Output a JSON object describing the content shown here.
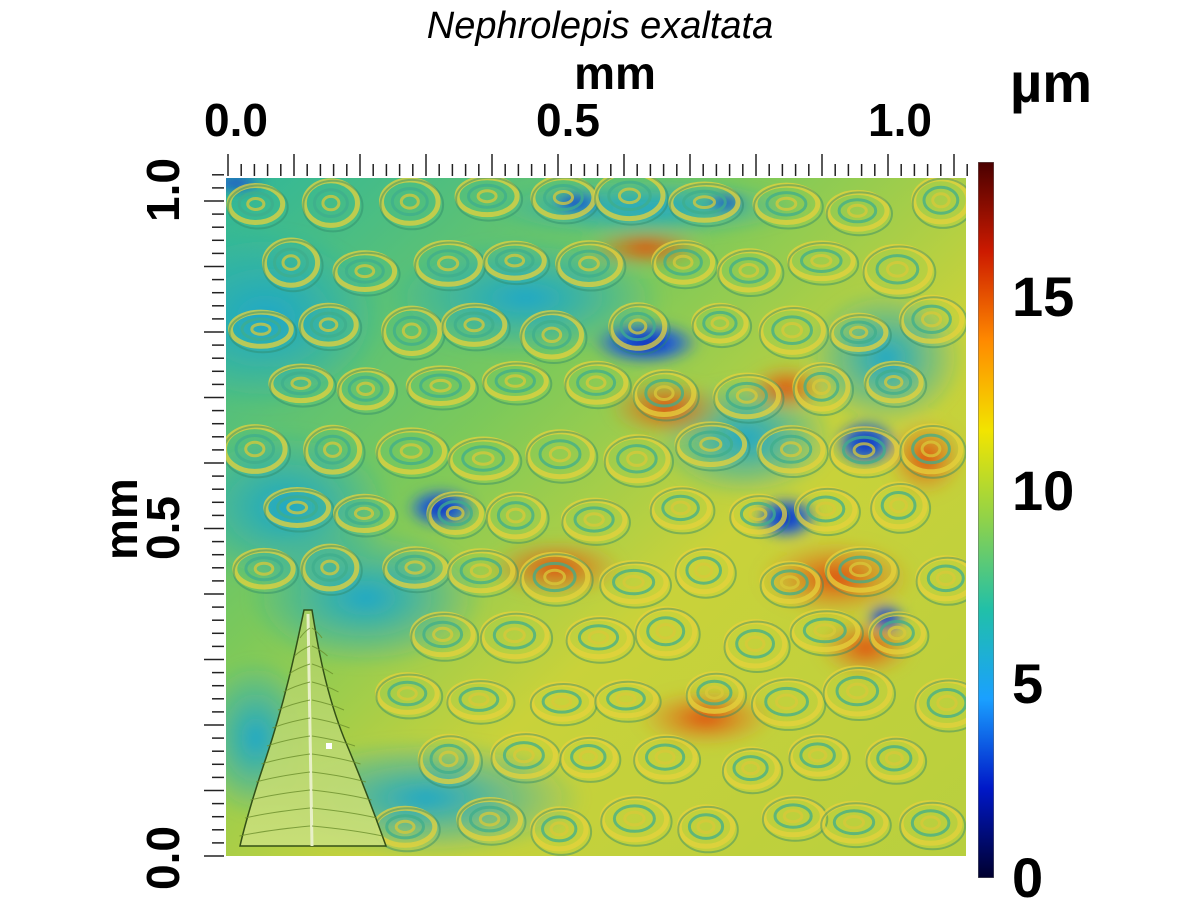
{
  "figure": {
    "title": "Nephrolepis exaltata",
    "x_axis": {
      "unit": "mm",
      "ticks": [
        "0.0",
        "0.5",
        "1.0"
      ]
    },
    "y_axis": {
      "unit": "mm",
      "ticks": [
        "0.0",
        "0.5",
        "1.0"
      ]
    },
    "colorbar": {
      "unit": "µm",
      "ticks": [
        "0",
        "5",
        "10",
        "15"
      ],
      "range": [
        0,
        18.5
      ],
      "colormap": [
        "#4a0000",
        "#cc1a00",
        "#ff8a00",
        "#f2e400",
        "#8fd24a",
        "#21c0a8",
        "#1aa0ff",
        "#0018c8",
        "#00002e"
      ]
    }
  },
  "image": {
    "description_icon": "surface-topography-map",
    "inset_icon": "fern-frond-icon"
  }
}
